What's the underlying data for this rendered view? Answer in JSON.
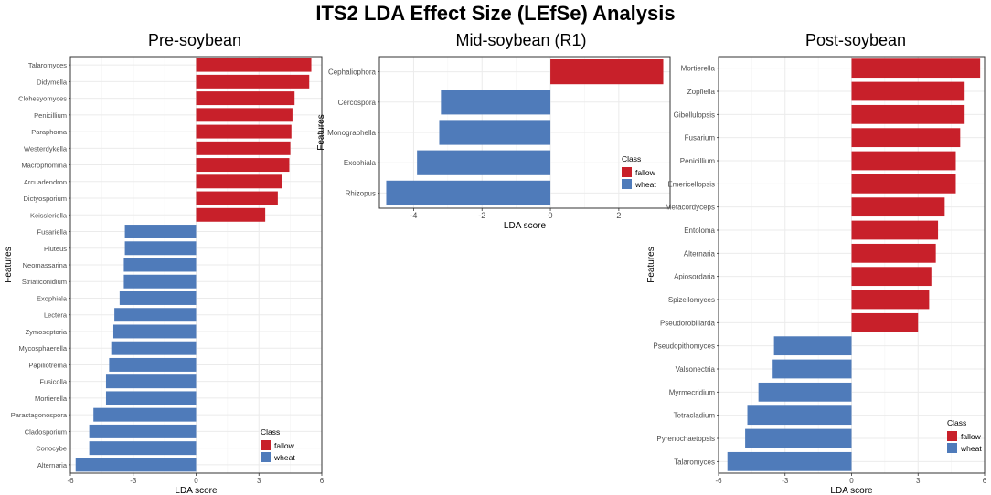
{
  "title": "ITS2 LDA Effect Size (LEfSe) Analysis",
  "colors": {
    "fallow": "#c8202a",
    "wheat": "#4f7bba",
    "grid": "#ebebeb",
    "border": "#333333"
  },
  "chart_data": [
    {
      "type": "bar",
      "orientation": "horizontal",
      "title": "Pre-soybean",
      "xlabel": "LDA score",
      "ylabel": "Features",
      "xlim": [
        -6,
        6
      ],
      "xticks": [
        -6,
        -3,
        0,
        3,
        6
      ],
      "legend": {
        "title": "Class",
        "entries": [
          "fallow",
          "wheat"
        ],
        "placement": "bottom-right"
      },
      "bars": [
        {
          "feature": "Talaromyces",
          "value": 5.5,
          "class": "fallow"
        },
        {
          "feature": "Didymella",
          "value": 5.4,
          "class": "fallow"
        },
        {
          "feature": "Clohesyomyces",
          "value": 4.7,
          "class": "fallow"
        },
        {
          "feature": "Penicillium",
          "value": 4.6,
          "class": "fallow"
        },
        {
          "feature": "Paraphoma",
          "value": 4.55,
          "class": "fallow"
        },
        {
          "feature": "Westerdykella",
          "value": 4.5,
          "class": "fallow"
        },
        {
          "feature": "Macrophomina",
          "value": 4.45,
          "class": "fallow"
        },
        {
          "feature": "Arcuadendron",
          "value": 4.1,
          "class": "fallow"
        },
        {
          "feature": "Dictyosporium",
          "value": 3.9,
          "class": "fallow"
        },
        {
          "feature": "Keissleriella",
          "value": 3.3,
          "class": "fallow"
        },
        {
          "feature": "Fusariella",
          "value": -3.4,
          "class": "wheat"
        },
        {
          "feature": "Pluteus",
          "value": -3.4,
          "class": "wheat"
        },
        {
          "feature": "Neomassarina",
          "value": -3.45,
          "class": "wheat"
        },
        {
          "feature": "Striaticonidium",
          "value": -3.45,
          "class": "wheat"
        },
        {
          "feature": "Exophiala",
          "value": -3.65,
          "class": "wheat"
        },
        {
          "feature": "Lectera",
          "value": -3.9,
          "class": "wheat"
        },
        {
          "feature": "Zymoseptoria",
          "value": -3.95,
          "class": "wheat"
        },
        {
          "feature": "Mycosphaerella",
          "value": -4.05,
          "class": "wheat"
        },
        {
          "feature": "Papiliotrema",
          "value": -4.15,
          "class": "wheat"
        },
        {
          "feature": "Fusicolla",
          "value": -4.3,
          "class": "wheat"
        },
        {
          "feature": "Mortierella",
          "value": -4.3,
          "class": "wheat"
        },
        {
          "feature": "Parastagonospora",
          "value": -4.9,
          "class": "wheat"
        },
        {
          "feature": "Cladosporium",
          "value": -5.1,
          "class": "wheat"
        },
        {
          "feature": "Conocybe",
          "value": -5.1,
          "class": "wheat"
        },
        {
          "feature": "Alternaria",
          "value": -5.75,
          "class": "wheat"
        }
      ]
    },
    {
      "type": "bar",
      "orientation": "horizontal",
      "title": "Mid-soybean (R1)",
      "xlabel": "LDA score",
      "ylabel": "Features",
      "xlim": [
        -5,
        3.5
      ],
      "xticks": [
        -4,
        -2,
        0,
        2
      ],
      "legend": {
        "title": "Class",
        "entries": [
          "fallow",
          "wheat"
        ],
        "placement": "right"
      },
      "bars": [
        {
          "feature": "Cephaliophora",
          "value": 3.3,
          "class": "fallow"
        },
        {
          "feature": "Cercospora",
          "value": -3.2,
          "class": "wheat"
        },
        {
          "feature": "Monographella",
          "value": -3.25,
          "class": "wheat"
        },
        {
          "feature": "Exophiala",
          "value": -3.9,
          "class": "wheat"
        },
        {
          "feature": "Rhizopus",
          "value": -4.8,
          "class": "wheat"
        }
      ]
    },
    {
      "type": "bar",
      "orientation": "horizontal",
      "title": "Post-soybean",
      "xlabel": "LDA score",
      "ylabel": "Features",
      "xlim": [
        -6,
        6
      ],
      "xticks": [
        -6,
        -3,
        0,
        3,
        6
      ],
      "legend": {
        "title": "Class",
        "entries": [
          "fallow",
          "wheat"
        ],
        "placement": "bottom-right"
      },
      "bars": [
        {
          "feature": "Mortierella",
          "value": 5.8,
          "class": "fallow"
        },
        {
          "feature": "Zopfiella",
          "value": 5.1,
          "class": "fallow"
        },
        {
          "feature": "Gibellulopsis",
          "value": 5.1,
          "class": "fallow"
        },
        {
          "feature": "Fusarium",
          "value": 4.9,
          "class": "fallow"
        },
        {
          "feature": "Penicillium",
          "value": 4.7,
          "class": "fallow"
        },
        {
          "feature": "Emericellopsis",
          "value": 4.7,
          "class": "fallow"
        },
        {
          "feature": "Metacordyceps",
          "value": 4.2,
          "class": "fallow"
        },
        {
          "feature": "Entoloma",
          "value": 3.9,
          "class": "fallow"
        },
        {
          "feature": "Alternaria",
          "value": 3.8,
          "class": "fallow"
        },
        {
          "feature": "Apiosordaria",
          "value": 3.6,
          "class": "fallow"
        },
        {
          "feature": "Spizellomyces",
          "value": 3.5,
          "class": "fallow"
        },
        {
          "feature": "Pseudorobillarda",
          "value": 3.0,
          "class": "fallow"
        },
        {
          "feature": "Pseudopithomyces",
          "value": -3.5,
          "class": "wheat"
        },
        {
          "feature": "Valsonectria",
          "value": -3.6,
          "class": "wheat"
        },
        {
          "feature": "Myrmecridium",
          "value": -4.2,
          "class": "wheat"
        },
        {
          "feature": "Tetracladium",
          "value": -4.7,
          "class": "wheat"
        },
        {
          "feature": "Pyrenochaetopsis",
          "value": -4.8,
          "class": "wheat"
        },
        {
          "feature": "Talaromyces",
          "value": -5.6,
          "class": "wheat"
        }
      ]
    }
  ]
}
